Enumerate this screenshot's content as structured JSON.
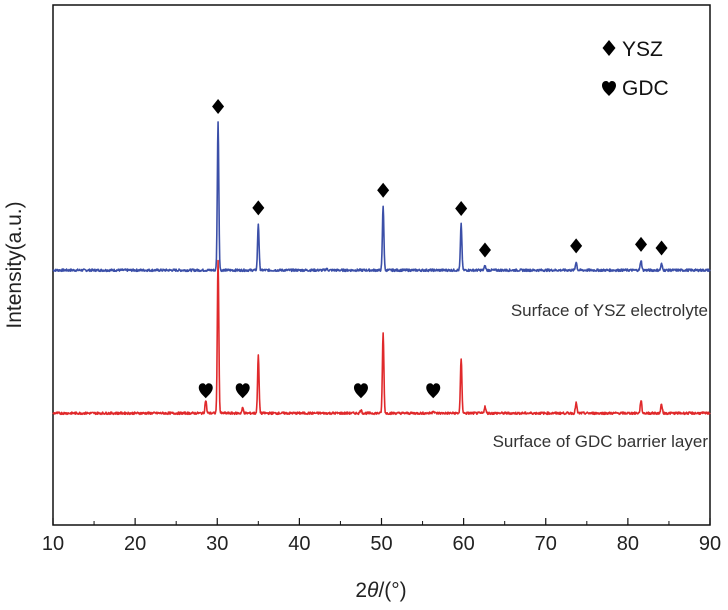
{
  "chart_data": {
    "type": "line",
    "title": "",
    "xlabel": "2θ/(°)",
    "xlabel_prefix": "2",
    "xlabel_theta": "θ",
    "xlabel_suffix": "/(°)",
    "ylabel": "Intensity(a.u.)",
    "xlim": [
      10,
      90
    ],
    "x_ticks": [
      10,
      20,
      30,
      40,
      50,
      60,
      70,
      80,
      90
    ],
    "y_ticks_visible": false,
    "y_range": [
      0,
      100
    ],
    "legend": [
      {
        "symbol": "diamond",
        "label": "YSZ"
      },
      {
        "symbol": "heart",
        "label": "GDC"
      }
    ],
    "series": [
      {
        "name": "Surface of YSZ electrolyte",
        "color": "#3b4fa8",
        "baseline": 49,
        "peaks": [
          {
            "x": 30.1,
            "h": 28.4
          },
          {
            "x": 35.0,
            "h": 8.9
          },
          {
            "x": 43.3,
            "h": 0.3
          },
          {
            "x": 50.2,
            "h": 12.3
          },
          {
            "x": 59.7,
            "h": 8.8
          },
          {
            "x": 62.6,
            "h": 0.8
          },
          {
            "x": 73.7,
            "h": 1.6
          },
          {
            "x": 81.6,
            "h": 1.9
          },
          {
            "x": 84.1,
            "h": 1.2
          }
        ],
        "markers": [
          {
            "x": 30.1,
            "symbol": "diamond"
          },
          {
            "x": 35.0,
            "symbol": "diamond"
          },
          {
            "x": 50.2,
            "symbol": "diamond"
          },
          {
            "x": 59.7,
            "symbol": "diamond"
          },
          {
            "x": 62.6,
            "symbol": "diamond"
          },
          {
            "x": 73.7,
            "symbol": "diamond"
          },
          {
            "x": 81.6,
            "symbol": "diamond"
          },
          {
            "x": 84.1,
            "symbol": "diamond"
          }
        ]
      },
      {
        "name": "Surface of GDC barrier layer",
        "color": "#e0292b",
        "baseline": 21.5,
        "peaks": [
          {
            "x": 28.6,
            "h": 2.5
          },
          {
            "x": 30.1,
            "h": 29.5
          },
          {
            "x": 33.1,
            "h": 1.0
          },
          {
            "x": 35.0,
            "h": 11.0
          },
          {
            "x": 47.5,
            "h": 0.6
          },
          {
            "x": 50.2,
            "h": 15.4
          },
          {
            "x": 56.3,
            "h": 0.5
          },
          {
            "x": 59.7,
            "h": 10.5
          },
          {
            "x": 62.6,
            "h": 1.3
          },
          {
            "x": 73.7,
            "h": 2.0
          },
          {
            "x": 81.6,
            "h": 2.5
          },
          {
            "x": 84.1,
            "h": 1.7
          }
        ],
        "markers": [
          {
            "x": 28.6,
            "symbol": "heart"
          },
          {
            "x": 33.1,
            "symbol": "heart"
          },
          {
            "x": 47.5,
            "symbol": "heart"
          },
          {
            "x": 56.3,
            "symbol": "heart"
          }
        ]
      }
    ]
  }
}
